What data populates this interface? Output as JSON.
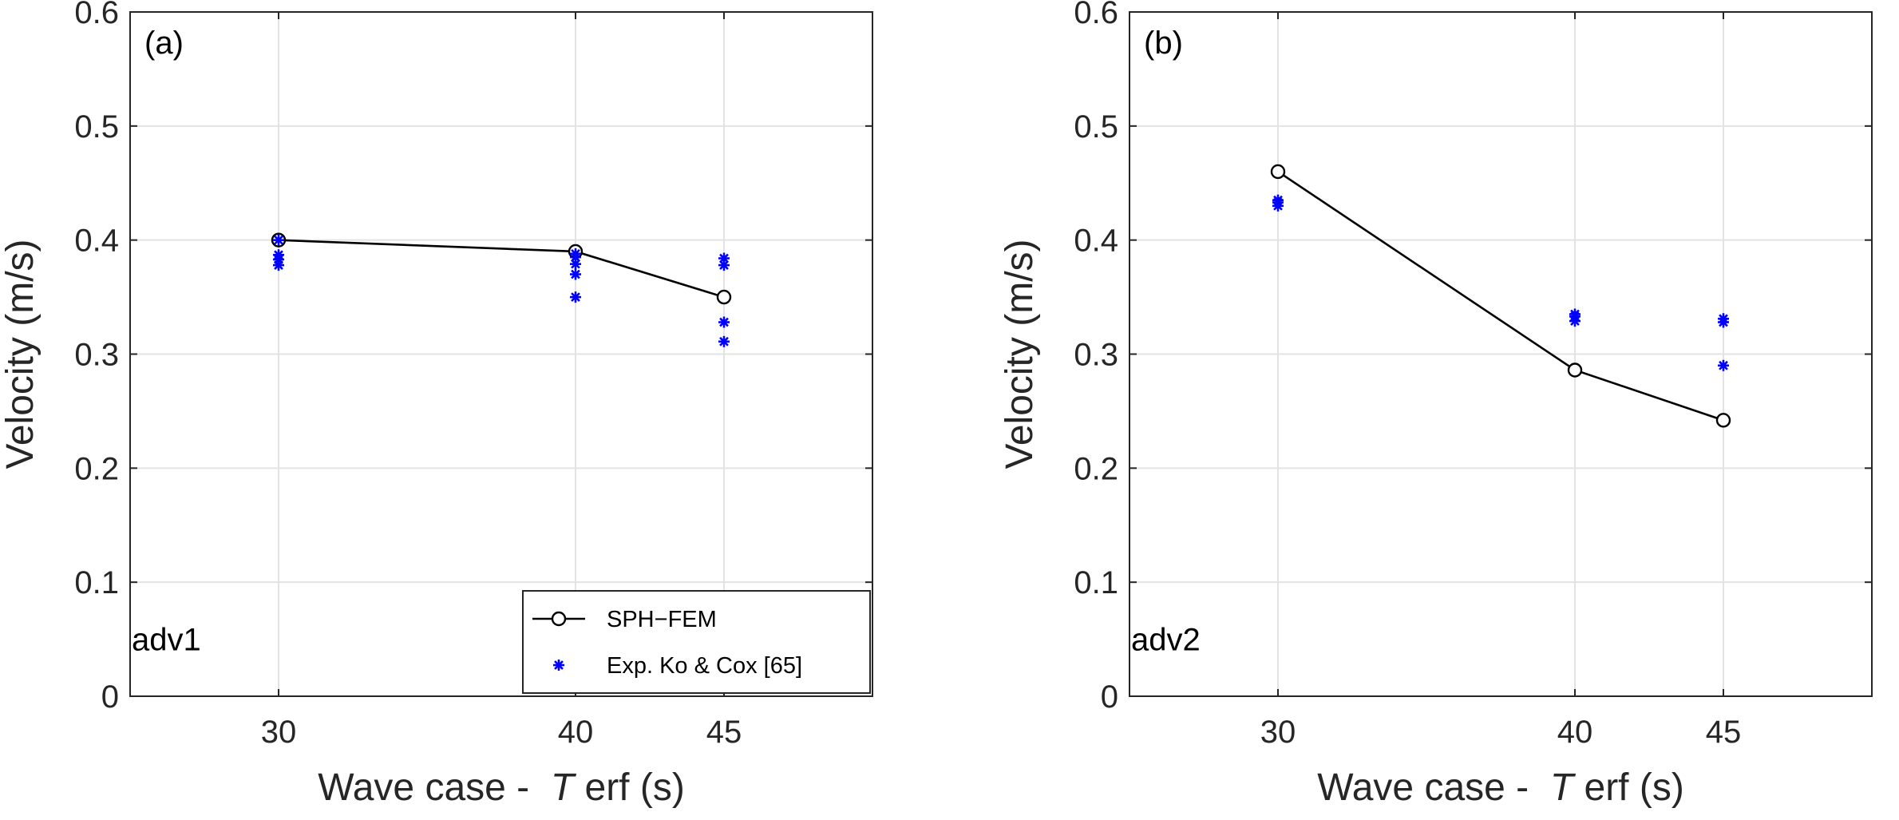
{
  "chart_data": [
    {
      "type": "line",
      "panel_label": "(a)",
      "annotation": "adv1",
      "xlabel_prefix": "Wave case - ",
      "xlabel_italic": "T",
      "xlabel_suffix": "erf (s)",
      "ylabel": "Velocity (m/s)",
      "xlim": [
        25,
        50
      ],
      "ylim": [
        0,
        0.6
      ],
      "xticks": [
        "30",
        "40",
        "45"
      ],
      "yticks": [
        "0",
        "0.1",
        "0.2",
        "0.3",
        "0.4",
        "0.5",
        "0.6"
      ],
      "grid": true,
      "legend_position": "bottom-right",
      "series": [
        {
          "name": "SPH−FEM",
          "style": "line-circle",
          "color": "#000000",
          "x": [
            30,
            40,
            45
          ],
          "y": [
            0.4,
            0.39,
            0.35
          ]
        },
        {
          "name": "Exp. Ko & Cox [65]",
          "style": "asterisk",
          "color": "#0000ff",
          "x": [
            30,
            30,
            30,
            30,
            40,
            40,
            40,
            40,
            40,
            45,
            45,
            45,
            45
          ],
          "y": [
            0.4,
            0.387,
            0.383,
            0.378,
            0.388,
            0.385,
            0.379,
            0.37,
            0.35,
            0.384,
            0.378,
            0.328,
            0.311
          ]
        }
      ]
    },
    {
      "type": "line",
      "panel_label": "(b)",
      "annotation": "adv2",
      "xlabel_prefix": "Wave case - ",
      "xlabel_italic": "T",
      "xlabel_suffix": "erf (s)",
      "ylabel": "Velocity (m/s)",
      "xlim": [
        25,
        50
      ],
      "ylim": [
        0,
        0.6
      ],
      "xticks": [
        "30",
        "40",
        "45"
      ],
      "yticks": [
        "0",
        "0.1",
        "0.2",
        "0.3",
        "0.4",
        "0.5",
        "0.6"
      ],
      "grid": true,
      "series": [
        {
          "name": "SPH−FEM",
          "style": "line-circle",
          "color": "#000000",
          "x": [
            30,
            40,
            45
          ],
          "y": [
            0.46,
            0.286,
            0.242
          ]
        },
        {
          "name": "Exp. Ko & Cox [65]",
          "style": "asterisk",
          "color": "#0000ff",
          "x": [
            30,
            30,
            30,
            40,
            40,
            40,
            45,
            45,
            45
          ],
          "y": [
            0.435,
            0.433,
            0.43,
            0.335,
            0.333,
            0.329,
            0.331,
            0.328,
            0.29
          ]
        }
      ]
    }
  ]
}
